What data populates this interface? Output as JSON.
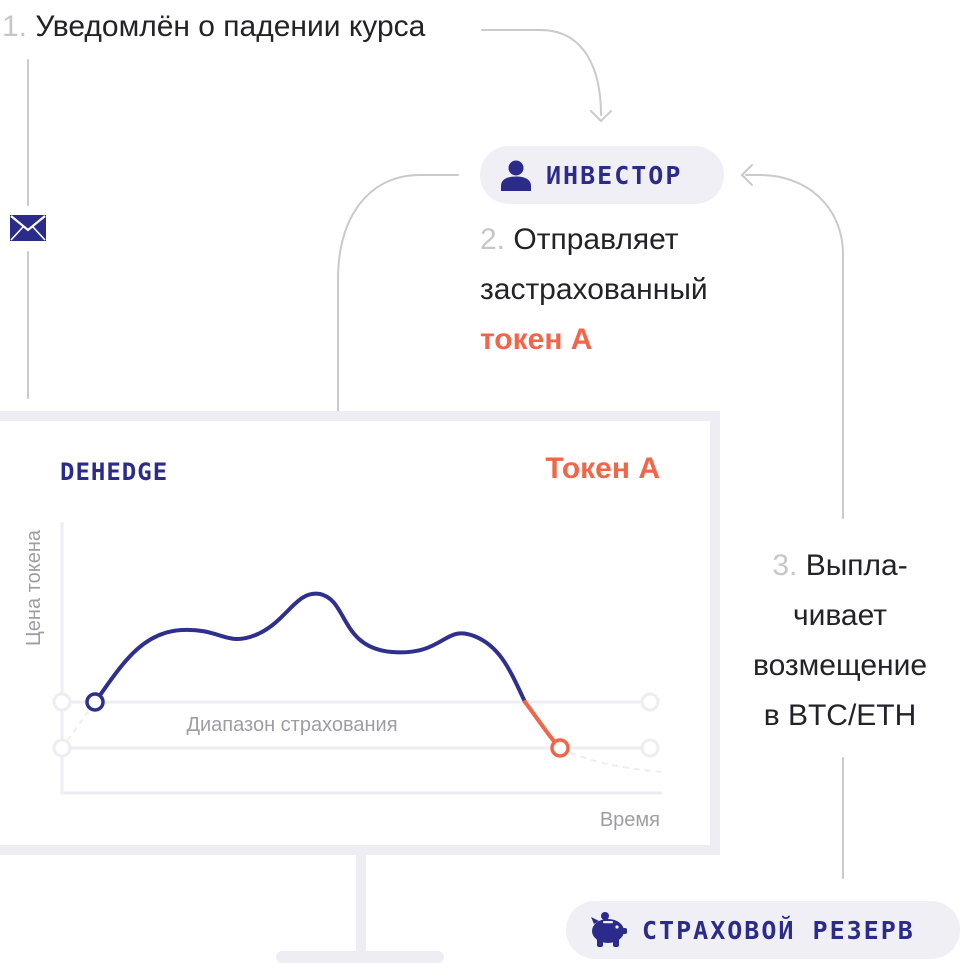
{
  "steps": {
    "step1": {
      "number": "1.",
      "text": "Уведомлён о падении курса"
    },
    "step2": {
      "number": "2.",
      "line1": "Отправляет",
      "line2": "застрахованный",
      "token": "токен А"
    },
    "step3": {
      "number": "3.",
      "line1": "Выпла-",
      "line2": "чивает",
      "line3": "возмещение",
      "line4": "в BTC/ETH"
    }
  },
  "investor": {
    "label": "ИНВЕСТОР",
    "icon": "user-icon"
  },
  "reserve": {
    "label": "СТРАХОВОЙ РЕЗЕРВ",
    "icon": "piggy-bank-icon"
  },
  "notification": {
    "icon": "envelope-icon"
  },
  "monitor": {
    "brand": "DEHEDGE",
    "token_title": "Токен А"
  },
  "chart_data": {
    "type": "line",
    "title": "Токен А",
    "xlabel": "Время",
    "ylabel": "Цена токена",
    "band_label": "Диапазон страхования",
    "grid": false,
    "colors": {
      "price": "#2f2f8e",
      "drop": "#f26549",
      "band": "#ededf3"
    }
  },
  "colors": {
    "accent_blue": "#2b2b8b",
    "accent_orange": "#f26549",
    "pill_bg": "#efeff5",
    "connector": "#c9c9cf"
  }
}
